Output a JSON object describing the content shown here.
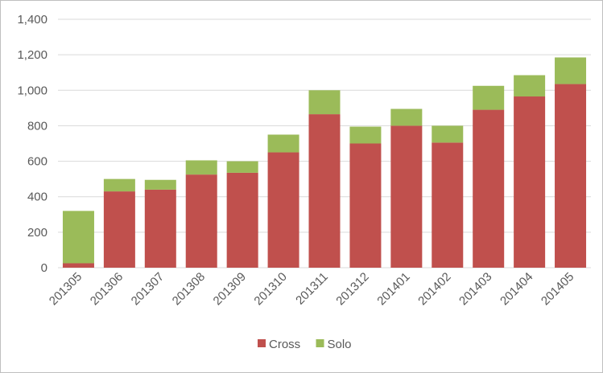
{
  "chart_data": {
    "type": "bar",
    "stacked": true,
    "categories": [
      "201305",
      "201306",
      "201307",
      "201308",
      "201309",
      "201310",
      "201311",
      "201312",
      "201401",
      "201402",
      "201403",
      "201404",
      "201405"
    ],
    "series": [
      {
        "name": "Cross",
        "color": "#c0504d",
        "values": [
          25,
          430,
          440,
          525,
          535,
          650,
          865,
          700,
          800,
          705,
          890,
          965,
          1035
        ]
      },
      {
        "name": "Solo",
        "color": "#9bbb59",
        "values": [
          295,
          70,
          55,
          80,
          65,
          100,
          135,
          95,
          95,
          95,
          135,
          120,
          150
        ]
      }
    ],
    "y_ticks": [
      "0",
      "200",
      "400",
      "600",
      "800",
      "1,000",
      "1,200",
      "1,400"
    ],
    "ylim": [
      0,
      1400
    ],
    "grid": true,
    "legend": "bottom-center",
    "title": "",
    "xlabel": "",
    "ylabel": ""
  }
}
